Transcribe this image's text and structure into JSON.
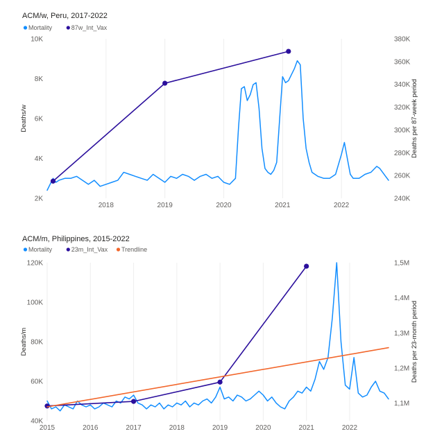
{
  "chart_data": [
    {
      "type": "line",
      "title": "ACM/w, Peru, 2017-2022",
      "ylabel": "Deaths/w",
      "y2label": "Deaths per 87-week period",
      "ylim": [
        2000,
        10000
      ],
      "y2lim": [
        240000,
        380000
      ],
      "y_ticks": [
        2000,
        4000,
        6000,
        8000,
        10000
      ],
      "y_tick_labels": [
        "2K",
        "4K",
        "6K",
        "8K",
        "10K"
      ],
      "y2_ticks": [
        240000,
        260000,
        280000,
        300000,
        320000,
        340000,
        360000,
        380000
      ],
      "y2_tick_labels": [
        "240K",
        "260K",
        "280K",
        "300K",
        "320K",
        "340K",
        "360K",
        "380K"
      ],
      "xlim": [
        2017.0,
        2022.8
      ],
      "x_ticks": [
        2018,
        2019,
        2020,
        2021,
        2022
      ],
      "x_tick_labels": [
        "2018",
        "2019",
        "2020",
        "2021",
        "2022"
      ],
      "grid": "vertical",
      "legend": "top-left",
      "series": [
        {
          "name": "Mortality",
          "axis": "left",
          "color": "#118dff",
          "x": [
            2017.0,
            2017.05,
            2017.1,
            2017.15,
            2017.2,
            2017.3,
            2017.4,
            2017.5,
            2017.6,
            2017.7,
            2017.8,
            2017.9,
            2018.0,
            2018.1,
            2018.2,
            2018.3,
            2018.4,
            2018.5,
            2018.6,
            2018.7,
            2018.8,
            2018.9,
            2019.0,
            2019.1,
            2019.2,
            2019.3,
            2019.4,
            2019.5,
            2019.6,
            2019.7,
            2019.8,
            2019.9,
            2020.0,
            2020.1,
            2020.2,
            2020.25,
            2020.3,
            2020.35,
            2020.4,
            2020.45,
            2020.5,
            2020.55,
            2020.6,
            2020.65,
            2020.7,
            2020.75,
            2020.8,
            2020.85,
            2020.9,
            2020.95,
            2021.0,
            2021.05,
            2021.1,
            2021.15,
            2021.2,
            2021.25,
            2021.3,
            2021.35,
            2021.4,
            2021.45,
            2021.5,
            2021.6,
            2021.7,
            2021.8,
            2021.9,
            2022.0,
            2022.05,
            2022.1,
            2022.15,
            2022.2,
            2022.3,
            2022.4,
            2022.5,
            2022.6,
            2022.65,
            2022.7,
            2022.75,
            2022.8
          ],
          "values": [
            2400,
            2700,
            3000,
            2800,
            2900,
            3000,
            3000,
            3100,
            2900,
            2700,
            2900,
            2600,
            2700,
            2800,
            2900,
            3300,
            3200,
            3100,
            3000,
            2900,
            3200,
            3000,
            2800,
            3100,
            3000,
            3200,
            3100,
            2900,
            3100,
            3200,
            3000,
            3100,
            2800,
            2700,
            3000,
            5500,
            7500,
            7600,
            6900,
            7200,
            7700,
            7800,
            6500,
            4500,
            3500,
            3300,
            3200,
            3400,
            3800,
            6000,
            8100,
            7800,
            7900,
            8200,
            8500,
            8900,
            8700,
            6000,
            4500,
            3800,
            3300,
            3100,
            3000,
            3000,
            3200,
            4200,
            4800,
            4000,
            3200,
            3000,
            3000,
            3200,
            3300,
            3600,
            3500,
            3300,
            3100,
            2900
          ]
        },
        {
          "name": "87w_Int_Vax",
          "axis": "right",
          "color": "#2b0f9c",
          "x": [
            2017.1,
            2019.0,
            2021.1
          ],
          "values": [
            255000,
            341000,
            369000
          ]
        }
      ]
    },
    {
      "type": "line",
      "title": "ACM/m, Philippines, 2015-2022",
      "ylabel": "Deaths/m",
      "y2label": "Deaths per 23-month period",
      "ylim": [
        40000,
        120000
      ],
      "y2lim": [
        1050000,
        1500000
      ],
      "y_ticks": [
        40000,
        60000,
        80000,
        100000,
        120000
      ],
      "y_tick_labels": [
        "40K",
        "60K",
        "80K",
        "100K",
        "120K"
      ],
      "y2_ticks": [
        1100000,
        1200000,
        1300000,
        1400000,
        1500000
      ],
      "y2_tick_labels": [
        "1,1M",
        "1,2M",
        "1,3M",
        "1,4M",
        "1,5M"
      ],
      "xlim": [
        2015.0,
        2022.9
      ],
      "x_ticks": [
        2015,
        2016,
        2017,
        2018,
        2019,
        2020,
        2021,
        2022
      ],
      "x_tick_labels": [
        "2015",
        "2016",
        "2017",
        "2018",
        "2019",
        "2020",
        "2021",
        "2022"
      ],
      "grid": "vertical",
      "legend": "top-left",
      "series": [
        {
          "name": "Mortality",
          "axis": "left",
          "color": "#118dff",
          "x": [
            2015.0,
            2015.1,
            2015.2,
            2015.3,
            2015.4,
            2015.5,
            2015.6,
            2015.7,
            2015.8,
            2015.9,
            2016.0,
            2016.1,
            2016.2,
            2016.3,
            2016.4,
            2016.5,
            2016.6,
            2016.7,
            2016.8,
            2016.9,
            2017.0,
            2017.1,
            2017.2,
            2017.3,
            2017.4,
            2017.5,
            2017.6,
            2017.7,
            2017.8,
            2017.9,
            2018.0,
            2018.1,
            2018.2,
            2018.3,
            2018.4,
            2018.5,
            2018.6,
            2018.7,
            2018.8,
            2018.9,
            2019.0,
            2019.1,
            2019.2,
            2019.3,
            2019.4,
            2019.5,
            2019.6,
            2019.7,
            2019.8,
            2019.9,
            2020.0,
            2020.1,
            2020.2,
            2020.3,
            2020.4,
            2020.5,
            2020.6,
            2020.7,
            2020.8,
            2020.9,
            2021.0,
            2021.1,
            2021.2,
            2021.3,
            2021.4,
            2021.5,
            2021.6,
            2021.7,
            2021.8,
            2021.9,
            2022.0,
            2022.1,
            2022.2,
            2022.3,
            2022.4,
            2022.5,
            2022.6,
            2022.7,
            2022.8,
            2022.9
          ],
          "values": [
            50000,
            46000,
            47000,
            45000,
            48000,
            47000,
            46000,
            50000,
            48000,
            47000,
            48000,
            46000,
            47000,
            49000,
            48000,
            47000,
            50000,
            49000,
            52000,
            51000,
            53000,
            49000,
            48000,
            46000,
            48000,
            47000,
            49000,
            46000,
            48000,
            47000,
            49000,
            48000,
            50000,
            47000,
            49000,
            48000,
            50000,
            51000,
            49000,
            52000,
            57000,
            51000,
            52000,
            50000,
            53000,
            52000,
            50000,
            51000,
            53000,
            55000,
            53000,
            50000,
            52000,
            49000,
            47000,
            46000,
            50000,
            52000,
            55000,
            54000,
            57000,
            55000,
            61000,
            70000,
            66000,
            72000,
            92000,
            120000,
            80000,
            58000,
            56000,
            72000,
            54000,
            52000,
            53000,
            57000,
            60000,
            55000,
            54000,
            51000
          ]
        },
        {
          "name": "23m_Int_Vax",
          "axis": "right",
          "color": "#2b0f9c",
          "x": [
            2015.0,
            2017.0,
            2019.0,
            2021.0
          ],
          "values": [
            1092000,
            1105000,
            1160000,
            1490000
          ]
        },
        {
          "name": "Trendline",
          "axis": "left",
          "color": "#f2662b",
          "x": [
            2015.0,
            2022.9
          ],
          "values": [
            47000,
            77000
          ]
        }
      ]
    }
  ]
}
